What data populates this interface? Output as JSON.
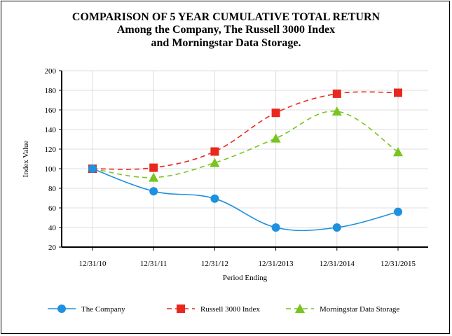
{
  "chart_data": {
    "type": "line",
    "title": "COMPARISON OF 5 YEAR CUMULATIVE TOTAL RETURN",
    "subtitle_line1": "Among the Company, The Russell 3000 Index",
    "subtitle_line2": "and Morningstar Data Storage.",
    "xlabel": "Period Ending",
    "ylabel": "Index Value",
    "categories": [
      "12/31/10",
      "12/31/11",
      "12/31/12",
      "12/31/2013",
      "12/31/2014",
      "12/31/2015"
    ],
    "ylim": [
      20,
      200
    ],
    "yticks": [
      20,
      40,
      60,
      80,
      100,
      120,
      140,
      160,
      180,
      200
    ],
    "grid": true,
    "legend_position": "bottom",
    "series": [
      {
        "name": "The Company",
        "values": [
          100,
          77,
          69.5,
          40,
          40,
          56
        ],
        "color": "#1e90e0",
        "marker": "circle",
        "dash": "solid"
      },
      {
        "name": "Russell 3000 Index",
        "values": [
          100,
          101,
          117.5,
          157,
          176.5,
          177.5
        ],
        "color": "#e8281e",
        "marker": "square",
        "dash": "dashed"
      },
      {
        "name": "Morningstar Data Storage",
        "values": [
          100,
          91,
          106,
          131,
          158.5,
          117
        ],
        "color": "#79c41e",
        "marker": "triangle",
        "dash": "dashed"
      }
    ]
  }
}
